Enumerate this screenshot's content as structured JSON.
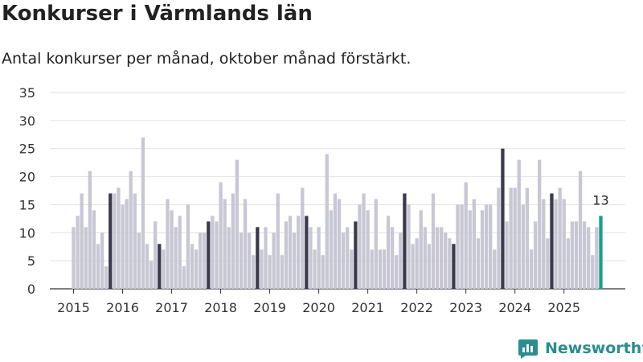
{
  "title": "Konkurser i Värmlands län",
  "subtitle": "Antal konkurser per månad, oktober månad förstärkt.",
  "brand": "Newsworthy",
  "colors": {
    "bar": "#c8c7d4",
    "highlight": "#3b3b4e",
    "latest": "#1a9e8f",
    "brand": "#2a8d8e"
  },
  "chart_data": {
    "type": "bar",
    "title": "Konkurser i Värmlands län",
    "xlabel": "",
    "ylabel": "Antal konkurser",
    "ylim": [
      0,
      35
    ],
    "yticks": [
      0,
      5,
      10,
      15,
      20,
      25,
      30,
      35
    ],
    "xticks": [
      "2015",
      "2016",
      "2017",
      "2018",
      "2019",
      "2020",
      "2021",
      "2022",
      "2023",
      "2024",
      "2025"
    ],
    "start": "2015-01",
    "highlight_month": "oktober",
    "latest_label": "13",
    "values": [
      11,
      13,
      17,
      11,
      21,
      14,
      8,
      10,
      4,
      17,
      17,
      18,
      15,
      16,
      21,
      17,
      10,
      27,
      8,
      5,
      12,
      8,
      7,
      16,
      14,
      11,
      13,
      4,
      15,
      8,
      7,
      10,
      10,
      12,
      13,
      12,
      19,
      16,
      11,
      17,
      23,
      10,
      16,
      10,
      6,
      11,
      7,
      11,
      6,
      10,
      17,
      6,
      12,
      13,
      10,
      13,
      18,
      13,
      11,
      7,
      11,
      6,
      24,
      14,
      17,
      16,
      10,
      11,
      7,
      12,
      15,
      17,
      14,
      7,
      16,
      7,
      7,
      13,
      11,
      6,
      10,
      17,
      15,
      8,
      9,
      14,
      11,
      8,
      17,
      11,
      11,
      10,
      9,
      8,
      15,
      15,
      19,
      14,
      16,
      9,
      14,
      15,
      15,
      7,
      18,
      25,
      12,
      18,
      18,
      23,
      15,
      18,
      7,
      12,
      23,
      16,
      9,
      17,
      16,
      18,
      16,
      9,
      12,
      12,
      21,
      12,
      11,
      6,
      11,
      13
    ]
  }
}
